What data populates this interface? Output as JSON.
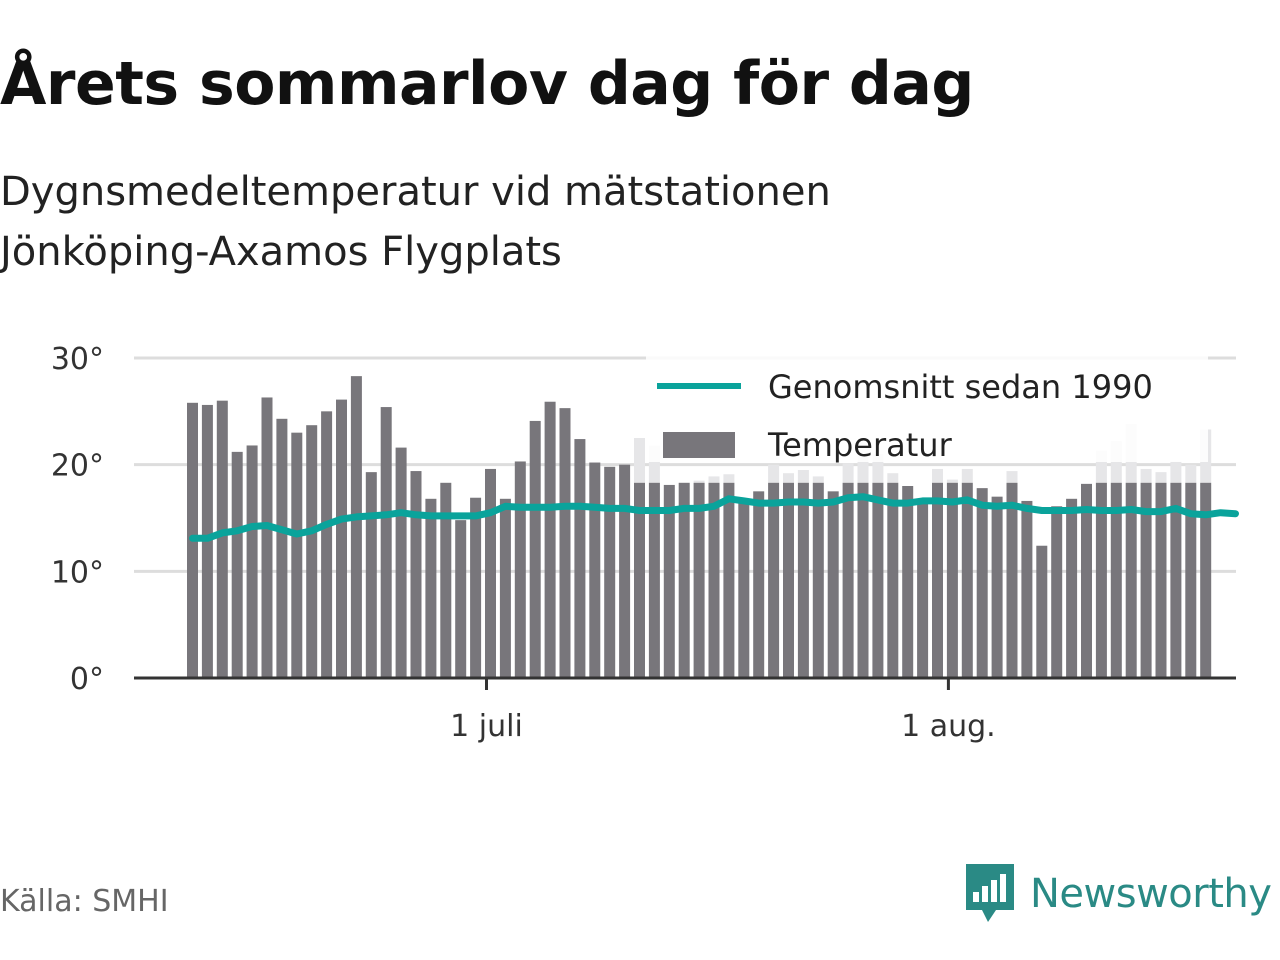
{
  "header": {
    "title": "Årets sommarlov dag för dag",
    "subtitle": "Dygnsmedeltemperatur vid mätstationen Jönköping-Axamos Flygplats"
  },
  "footer": {
    "source": "Källa: SMHI",
    "brand": "Newsworthy"
  },
  "colors": {
    "bar": "#78767b",
    "bar_highlight": "#e6e6e8",
    "line": "#0aa39b",
    "grid": "#dddddd",
    "axis": "#333333"
  },
  "chart_data": {
    "type": "bar",
    "x_start": "2021-06-11",
    "ylim": [
      0,
      30
    ],
    "yticks": [
      0,
      10,
      20,
      30
    ],
    "ytick_labels": [
      "0°",
      "10°",
      "20°",
      "30°"
    ],
    "xticks": [
      {
        "date": "2021-07-01",
        "label": "1 juli"
      },
      {
        "date": "2021-08-01",
        "label": "1 aug."
      }
    ],
    "legend": {
      "placement": "top-right"
    },
    "series": [
      {
        "name": "Genomsnitt sedan 1990",
        "kind": "line",
        "values": [
          13.1,
          13.1,
          13.6,
          13.8,
          14.2,
          14.3,
          13.9,
          13.5,
          13.8,
          14.4,
          14.9,
          15.1,
          15.2,
          15.3,
          15.5,
          15.3,
          15.2,
          15.2,
          15.2,
          15.2,
          15.5,
          16.1,
          16.0,
          16.0,
          16.0,
          16.1,
          16.1,
          16.0,
          15.9,
          15.9,
          15.7,
          15.7,
          15.7,
          15.9,
          15.9,
          16.1,
          16.8,
          16.6,
          16.4,
          16.4,
          16.5,
          16.5,
          16.4,
          16.5,
          16.9,
          17.0,
          16.7,
          16.4,
          16.4,
          16.6,
          16.6,
          16.5,
          16.7,
          16.2,
          16.1,
          16.2,
          15.9,
          15.7,
          15.7,
          15.7,
          15.8,
          15.7,
          15.7,
          15.8,
          15.6,
          15.6,
          15.9,
          15.4,
          15.3,
          15.5,
          15.4
        ]
      },
      {
        "name": "Temperatur",
        "kind": "bar",
        "values": [
          25.8,
          25.6,
          26.0,
          21.2,
          21.8,
          26.3,
          24.3,
          23.0,
          23.7,
          25.0,
          26.1,
          28.3,
          19.3,
          25.4,
          21.6,
          19.4,
          16.8,
          18.3,
          14.8,
          16.9,
          19.6,
          16.8,
          20.3,
          24.1,
          25.9,
          25.3,
          22.4,
          20.2,
          19.8,
          20.0,
          22.5,
          21.8,
          18.1,
          18.3,
          18.5,
          18.9,
          19.1,
          16.5,
          17.5,
          20.0,
          19.2,
          19.5,
          18.9,
          17.5,
          20.1,
          20.8,
          21.0,
          19.2,
          18.0,
          16.5,
          19.6,
          18.6,
          19.6,
          17.8,
          17.0,
          19.4,
          16.6,
          12.4,
          16.1,
          16.8,
          18.2,
          21.3,
          22.2,
          23.8,
          19.6,
          19.3,
          20.3,
          20.0,
          23.3
        ]
      }
    ]
  }
}
